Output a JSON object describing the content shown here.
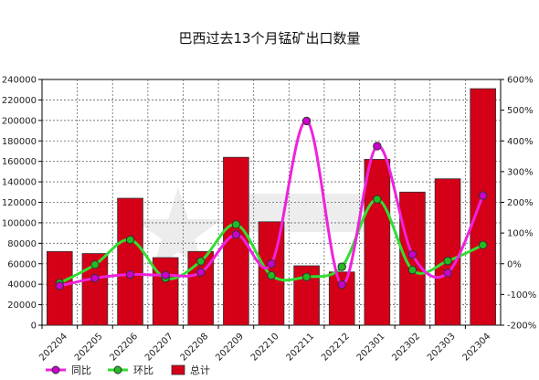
{
  "chart_data": {
    "type": "bar",
    "title": "巴西过去13个月锰矿出口数量",
    "categories": [
      "202204",
      "202205",
      "202206",
      "202207",
      "202208",
      "202209",
      "202210",
      "202211",
      "202212",
      "202301",
      "202302",
      "202303",
      "202304"
    ],
    "series": [
      {
        "name": "总计",
        "type": "bar",
        "axis": "left",
        "color": "#d40018",
        "values": [
          72000,
          70000,
          124000,
          66000,
          72000,
          164000,
          101000,
          58000,
          52000,
          162000,
          130000,
          143000,
          231000
        ]
      },
      {
        "name": "同比",
        "type": "line",
        "axis": "right",
        "color": "#ee22dd",
        "marker_fill": "#cc00cc",
        "values": [
          -72,
          -47,
          -35,
          -37,
          -28,
          95,
          0,
          465,
          -68,
          383,
          30,
          -30,
          222
        ]
      },
      {
        "name": "环比",
        "type": "line",
        "axis": "right",
        "color": "#33dd33",
        "marker_fill": "#22bb22",
        "values": [
          -63,
          -3,
          78,
          -47,
          8,
          128,
          -38,
          -43,
          -10,
          210,
          -20,
          9,
          61
        ]
      }
    ],
    "left_axis": {
      "min": 0,
      "max": 240000,
      "step": 20000,
      "tick_labels": [
        "0",
        "20000",
        "40000",
        "60000",
        "80000",
        "100000",
        "120000",
        "140000",
        "160000",
        "180000",
        "200000",
        "220000",
        "240000"
      ]
    },
    "right_axis": {
      "min": -200,
      "max": 600,
      "step": 100,
      "tick_labels": [
        "-200%",
        "-100%",
        "0%",
        "100%",
        "200%",
        "300%",
        "400%",
        "500%",
        "600%"
      ]
    },
    "grid": true,
    "legend_position": "bottom-left"
  },
  "legend": [
    {
      "key": "yoy",
      "label": "同比"
    },
    {
      "key": "mom",
      "label": "环比"
    },
    {
      "key": "total",
      "label": "总计"
    }
  ]
}
